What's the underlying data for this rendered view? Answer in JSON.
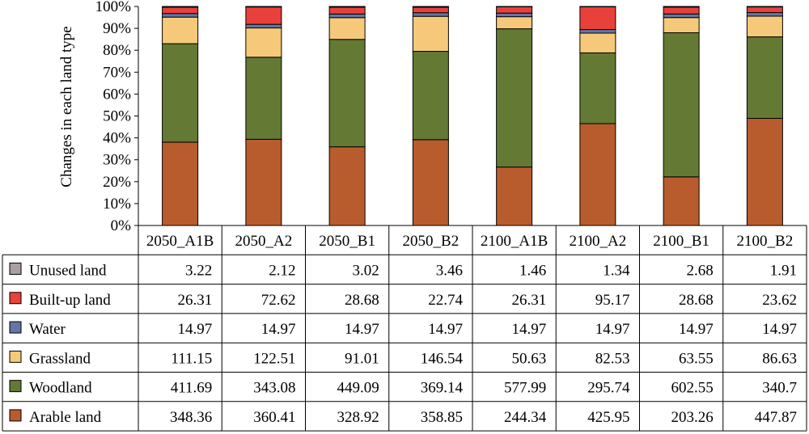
{
  "chart_data": {
    "type": "bar",
    "stacked": true,
    "normalized": true,
    "ylabel": "Changes in each land type",
    "ylim": [
      0,
      100
    ],
    "y_ticks": [
      "0%",
      "10%",
      "20%",
      "30%",
      "40%",
      "50%",
      "60%",
      "70%",
      "80%",
      "90%",
      "100%"
    ],
    "categories": [
      "2050_A1B",
      "2050_A2",
      "2050_B1",
      "2050_B2",
      "2100_A1B",
      "2100_A2",
      "2100_B1",
      "2100_B2"
    ],
    "series": [
      {
        "name": "Arable land",
        "color": "#b85c2e",
        "values": [
          "348.36",
          "360.41",
          "328.92",
          "358.85",
          "244.34",
          "425.95",
          "203.26",
          "447.87"
        ]
      },
      {
        "name": "Woodland",
        "color": "#647a34",
        "values": [
          "411.69",
          "343.08",
          "449.09",
          "369.14",
          "577.99",
          "295.74",
          "602.55",
          "340.7"
        ]
      },
      {
        "name": "Grassland",
        "color": "#f6c97a",
        "values": [
          "111.15",
          "122.51",
          "91.01",
          "146.54",
          "50.63",
          "82.53",
          "63.55",
          "86.63"
        ]
      },
      {
        "name": "Water",
        "color": "#6576a6",
        "values": [
          "14.97",
          "14.97",
          "14.97",
          "14.97",
          "14.97",
          "14.97",
          "14.97",
          "14.97"
        ]
      },
      {
        "name": "Built-up land",
        "color": "#e8413b",
        "values": [
          "26.31",
          "72.62",
          "28.68",
          "22.74",
          "26.31",
          "95.17",
          "28.68",
          "23.62"
        ]
      },
      {
        "name": "Unused land",
        "color": "#a8a0a3",
        "values": [
          "3.22",
          "2.12",
          "3.02",
          "3.46",
          "1.46",
          "1.34",
          "2.68",
          "1.91"
        ]
      }
    ],
    "table_row_order": [
      "Unused land",
      "Built-up land",
      "Water",
      "Grassland",
      "Woodland",
      "Arable land"
    ],
    "legend": "table-rows-left"
  }
}
